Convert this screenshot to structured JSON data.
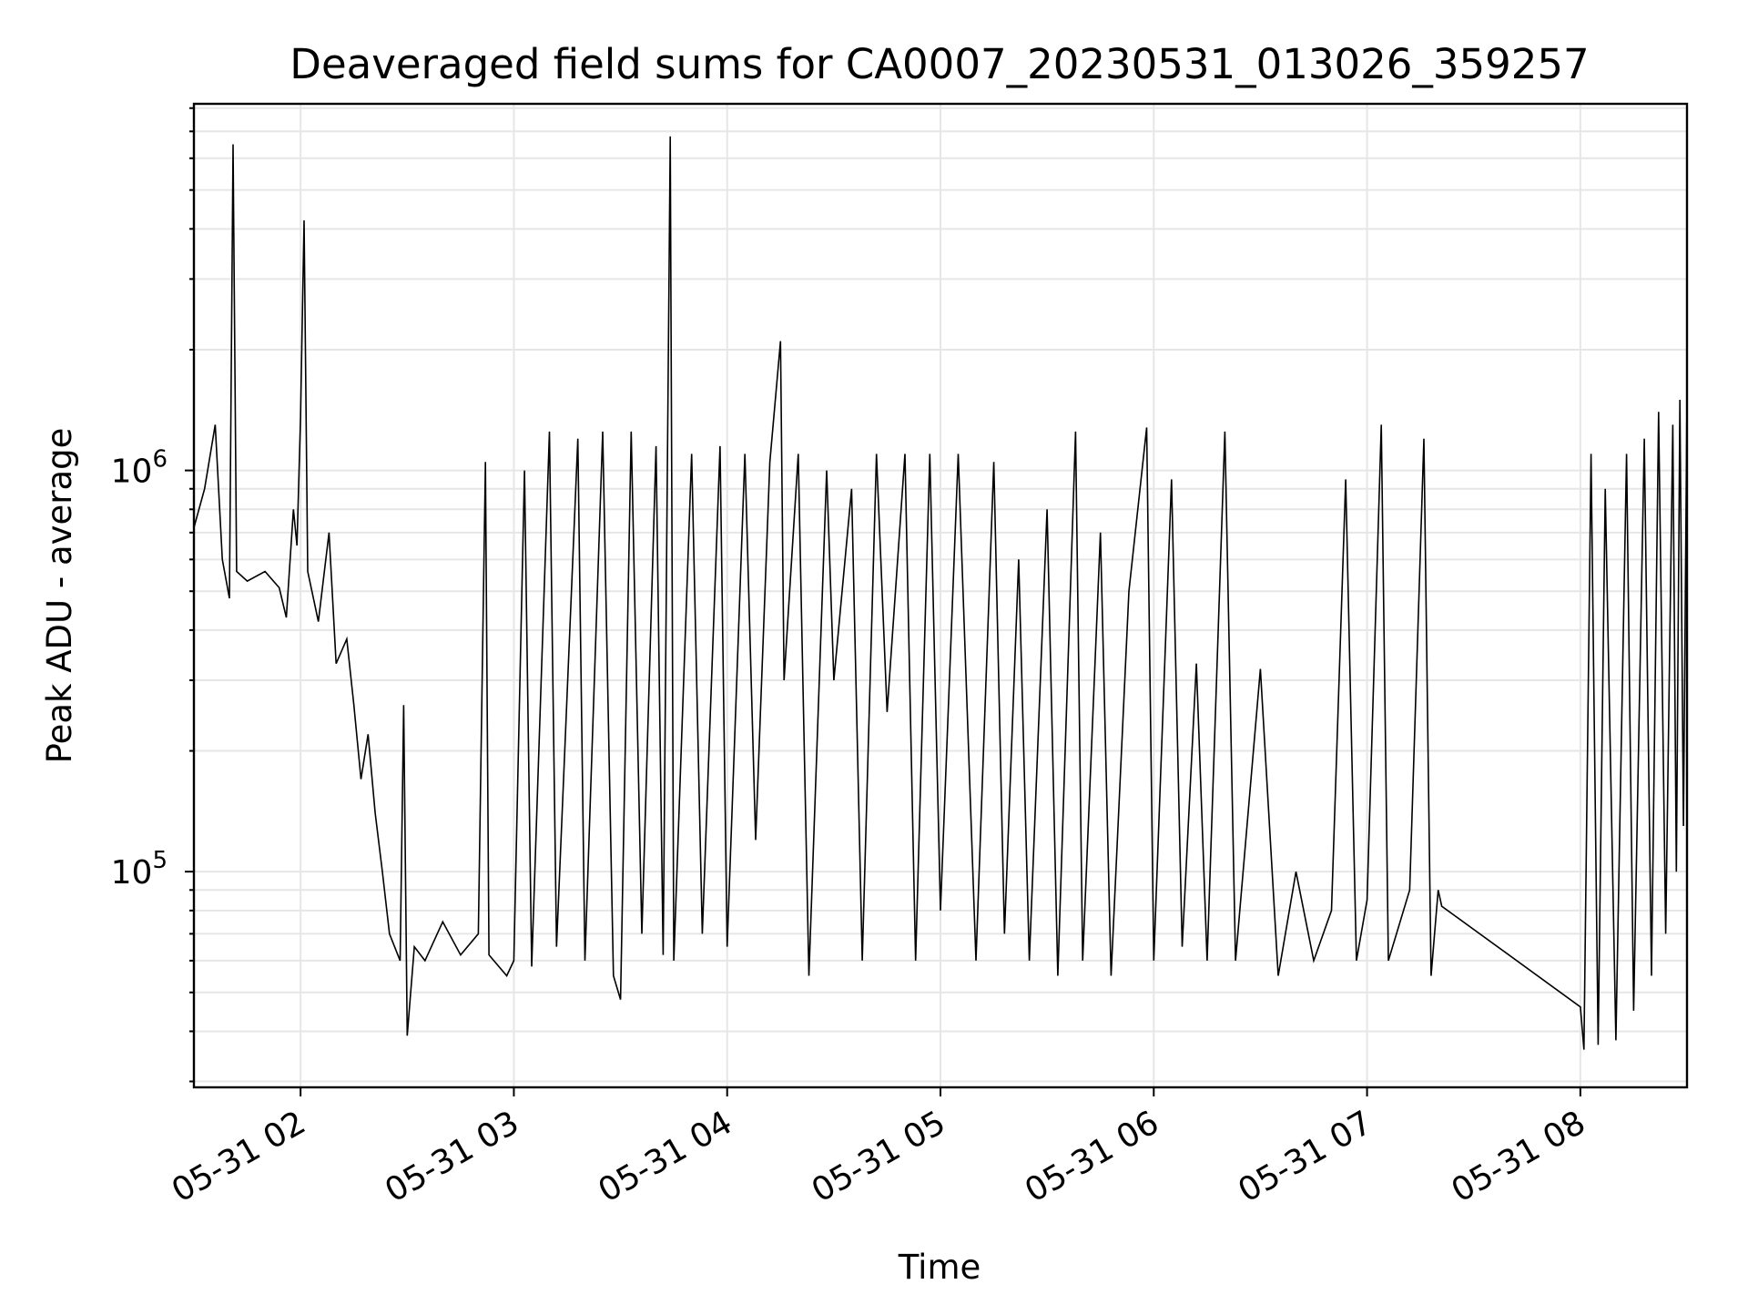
{
  "chart_data": {
    "type": "line",
    "title": "Deaveraged field sums for CA0007_20230531_013026_359257",
    "xlabel": "Time",
    "ylabel": "Peak ADU - average",
    "x_tick_labels": [
      "05-31 02",
      "05-31 03",
      "05-31 04",
      "05-31 05",
      "05-31 06",
      "05-31 07",
      "05-31 08"
    ],
    "x_tick_times": [
      "2023-05-31T02:00",
      "2023-05-31T03:00",
      "2023-05-31T04:00",
      "2023-05-31T05:00",
      "2023-05-31T06:00",
      "2023-05-31T07:00",
      "2023-05-31T08:00"
    ],
    "xlim": [
      "2023-05-31T01:30",
      "2023-05-31T08:30"
    ],
    "y_scale": "log",
    "ylim": [
      29000,
      8200000
    ],
    "y_tick_labels": [
      {
        "base": "10",
        "exp": "5",
        "value": 100000
      },
      {
        "base": "10",
        "exp": "6",
        "value": 1000000
      }
    ],
    "grid": true,
    "legend": "none",
    "series_color": "#000000",
    "grid_color": "#e6e6e6",
    "series": [
      {
        "points": [
          [
            "2023-05-31T01:30",
            720000
          ],
          [
            "2023-05-31T01:33",
            900000
          ],
          [
            "2023-05-31T01:36",
            1300000
          ],
          [
            "2023-05-31T01:38",
            600000
          ],
          [
            "2023-05-31T01:40",
            480000
          ],
          [
            "2023-05-31T01:41",
            6500000
          ],
          [
            "2023-05-31T01:42",
            560000
          ],
          [
            "2023-05-31T01:45",
            530000
          ],
          [
            "2023-05-31T01:50",
            560000
          ],
          [
            "2023-05-31T01:54",
            510000
          ],
          [
            "2023-05-31T01:56",
            430000
          ],
          [
            "2023-05-31T01:58",
            800000
          ],
          [
            "2023-05-31T01:59",
            650000
          ],
          [
            "2023-05-31T02:00",
            1350000
          ],
          [
            "2023-05-31T02:01",
            4200000
          ],
          [
            "2023-05-31T02:02",
            560000
          ],
          [
            "2023-05-31T02:05",
            420000
          ],
          [
            "2023-05-31T02:08",
            700000
          ],
          [
            "2023-05-31T02:10",
            330000
          ],
          [
            "2023-05-31T02:13",
            380000
          ],
          [
            "2023-05-31T02:15",
            260000
          ],
          [
            "2023-05-31T02:17",
            170000
          ],
          [
            "2023-05-31T02:19",
            220000
          ],
          [
            "2023-05-31T02:21",
            140000
          ],
          [
            "2023-05-31T02:23",
            100000
          ],
          [
            "2023-05-31T02:25",
            70000
          ],
          [
            "2023-05-31T02:28",
            60000
          ],
          [
            "2023-05-31T02:29",
            260000
          ],
          [
            "2023-05-31T02:30",
            39000
          ],
          [
            "2023-05-31T02:32",
            65000
          ],
          [
            "2023-05-31T02:35",
            60000
          ],
          [
            "2023-05-31T02:40",
            75000
          ],
          [
            "2023-05-31T02:45",
            62000
          ],
          [
            "2023-05-31T02:50",
            70000
          ],
          [
            "2023-05-31T02:52",
            1050000
          ],
          [
            "2023-05-31T02:53",
            62000
          ],
          [
            "2023-05-31T02:58",
            55000
          ],
          [
            "2023-05-31T03:00",
            60000
          ],
          [
            "2023-05-31T03:03",
            1000000
          ],
          [
            "2023-05-31T03:05",
            58000
          ],
          [
            "2023-05-31T03:10",
            1250000
          ],
          [
            "2023-05-31T03:12",
            65000
          ],
          [
            "2023-05-31T03:18",
            1200000
          ],
          [
            "2023-05-31T03:20",
            60000
          ],
          [
            "2023-05-31T03:25",
            1250000
          ],
          [
            "2023-05-31T03:28",
            55000
          ],
          [
            "2023-05-31T03:30",
            48000
          ],
          [
            "2023-05-31T03:33",
            1250000
          ],
          [
            "2023-05-31T03:36",
            70000
          ],
          [
            "2023-05-31T03:40",
            1150000
          ],
          [
            "2023-05-31T03:42",
            62000
          ],
          [
            "2023-05-31T03:44",
            6800000
          ],
          [
            "2023-05-31T03:45",
            60000
          ],
          [
            "2023-05-31T03:50",
            1100000
          ],
          [
            "2023-05-31T03:53",
            70000
          ],
          [
            "2023-05-31T03:58",
            1150000
          ],
          [
            "2023-05-31T04:00",
            65000
          ],
          [
            "2023-05-31T04:05",
            1100000
          ],
          [
            "2023-05-31T04:08",
            120000
          ],
          [
            "2023-05-31T04:12",
            1050000
          ],
          [
            "2023-05-31T04:15",
            2100000
          ],
          [
            "2023-05-31T04:16",
            300000
          ],
          [
            "2023-05-31T04:20",
            1100000
          ],
          [
            "2023-05-31T04:23",
            55000
          ],
          [
            "2023-05-31T04:28",
            1000000
          ],
          [
            "2023-05-31T04:30",
            300000
          ],
          [
            "2023-05-31T04:35",
            900000
          ],
          [
            "2023-05-31T04:38",
            60000
          ],
          [
            "2023-05-31T04:42",
            1100000
          ],
          [
            "2023-05-31T04:45",
            250000
          ],
          [
            "2023-05-31T04:50",
            1100000
          ],
          [
            "2023-05-31T04:53",
            60000
          ],
          [
            "2023-05-31T04:57",
            1100000
          ],
          [
            "2023-05-31T05:00",
            80000
          ],
          [
            "2023-05-31T05:05",
            1100000
          ],
          [
            "2023-05-31T05:10",
            60000
          ],
          [
            "2023-05-31T05:15",
            1050000
          ],
          [
            "2023-05-31T05:18",
            70000
          ],
          [
            "2023-05-31T05:22",
            600000
          ],
          [
            "2023-05-31T05:25",
            60000
          ],
          [
            "2023-05-31T05:30",
            800000
          ],
          [
            "2023-05-31T05:33",
            55000
          ],
          [
            "2023-05-31T05:38",
            1250000
          ],
          [
            "2023-05-31T05:40",
            60000
          ],
          [
            "2023-05-31T05:45",
            700000
          ],
          [
            "2023-05-31T05:48",
            55000
          ],
          [
            "2023-05-31T05:53",
            500000
          ],
          [
            "2023-05-31T05:58",
            1280000
          ],
          [
            "2023-05-31T06:00",
            60000
          ],
          [
            "2023-05-31T06:05",
            950000
          ],
          [
            "2023-05-31T06:08",
            65000
          ],
          [
            "2023-05-31T06:12",
            330000
          ],
          [
            "2023-05-31T06:15",
            60000
          ],
          [
            "2023-05-31T06:20",
            1250000
          ],
          [
            "2023-05-31T06:23",
            60000
          ],
          [
            "2023-05-31T06:30",
            320000
          ],
          [
            "2023-05-31T06:35",
            55000
          ],
          [
            "2023-05-31T06:40",
            100000
          ],
          [
            "2023-05-31T06:45",
            60000
          ],
          [
            "2023-05-31T06:50",
            80000
          ],
          [
            "2023-05-31T06:54",
            950000
          ],
          [
            "2023-05-31T06:57",
            60000
          ],
          [
            "2023-05-31T07:00",
            85000
          ],
          [
            "2023-05-31T07:04",
            1300000
          ],
          [
            "2023-05-31T07:06",
            60000
          ],
          [
            "2023-05-31T07:12",
            90000
          ],
          [
            "2023-05-31T07:16",
            1200000
          ],
          [
            "2023-05-31T07:18",
            55000
          ],
          [
            "2023-05-31T07:20",
            90000
          ],
          [
            "2023-05-31T07:21",
            82000
          ],
          [
            "2023-05-31T08:00",
            46000
          ],
          [
            "2023-05-31T08:01",
            36000
          ],
          [
            "2023-05-31T08:03",
            1100000
          ],
          [
            "2023-05-31T08:05",
            37000
          ],
          [
            "2023-05-31T08:07",
            900000
          ],
          [
            "2023-05-31T08:10",
            38000
          ],
          [
            "2023-05-31T08:13",
            1100000
          ],
          [
            "2023-05-31T08:15",
            45000
          ],
          [
            "2023-05-31T08:18",
            1200000
          ],
          [
            "2023-05-31T08:20",
            55000
          ],
          [
            "2023-05-31T08:22",
            1400000
          ],
          [
            "2023-05-31T08:24",
            70000
          ],
          [
            "2023-05-31T08:26",
            1300000
          ],
          [
            "2023-05-31T08:27",
            100000
          ],
          [
            "2023-05-31T08:28",
            1500000
          ],
          [
            "2023-05-31T08:29",
            130000
          ],
          [
            "2023-05-31T08:30",
            1550000
          ]
        ]
      }
    ]
  }
}
